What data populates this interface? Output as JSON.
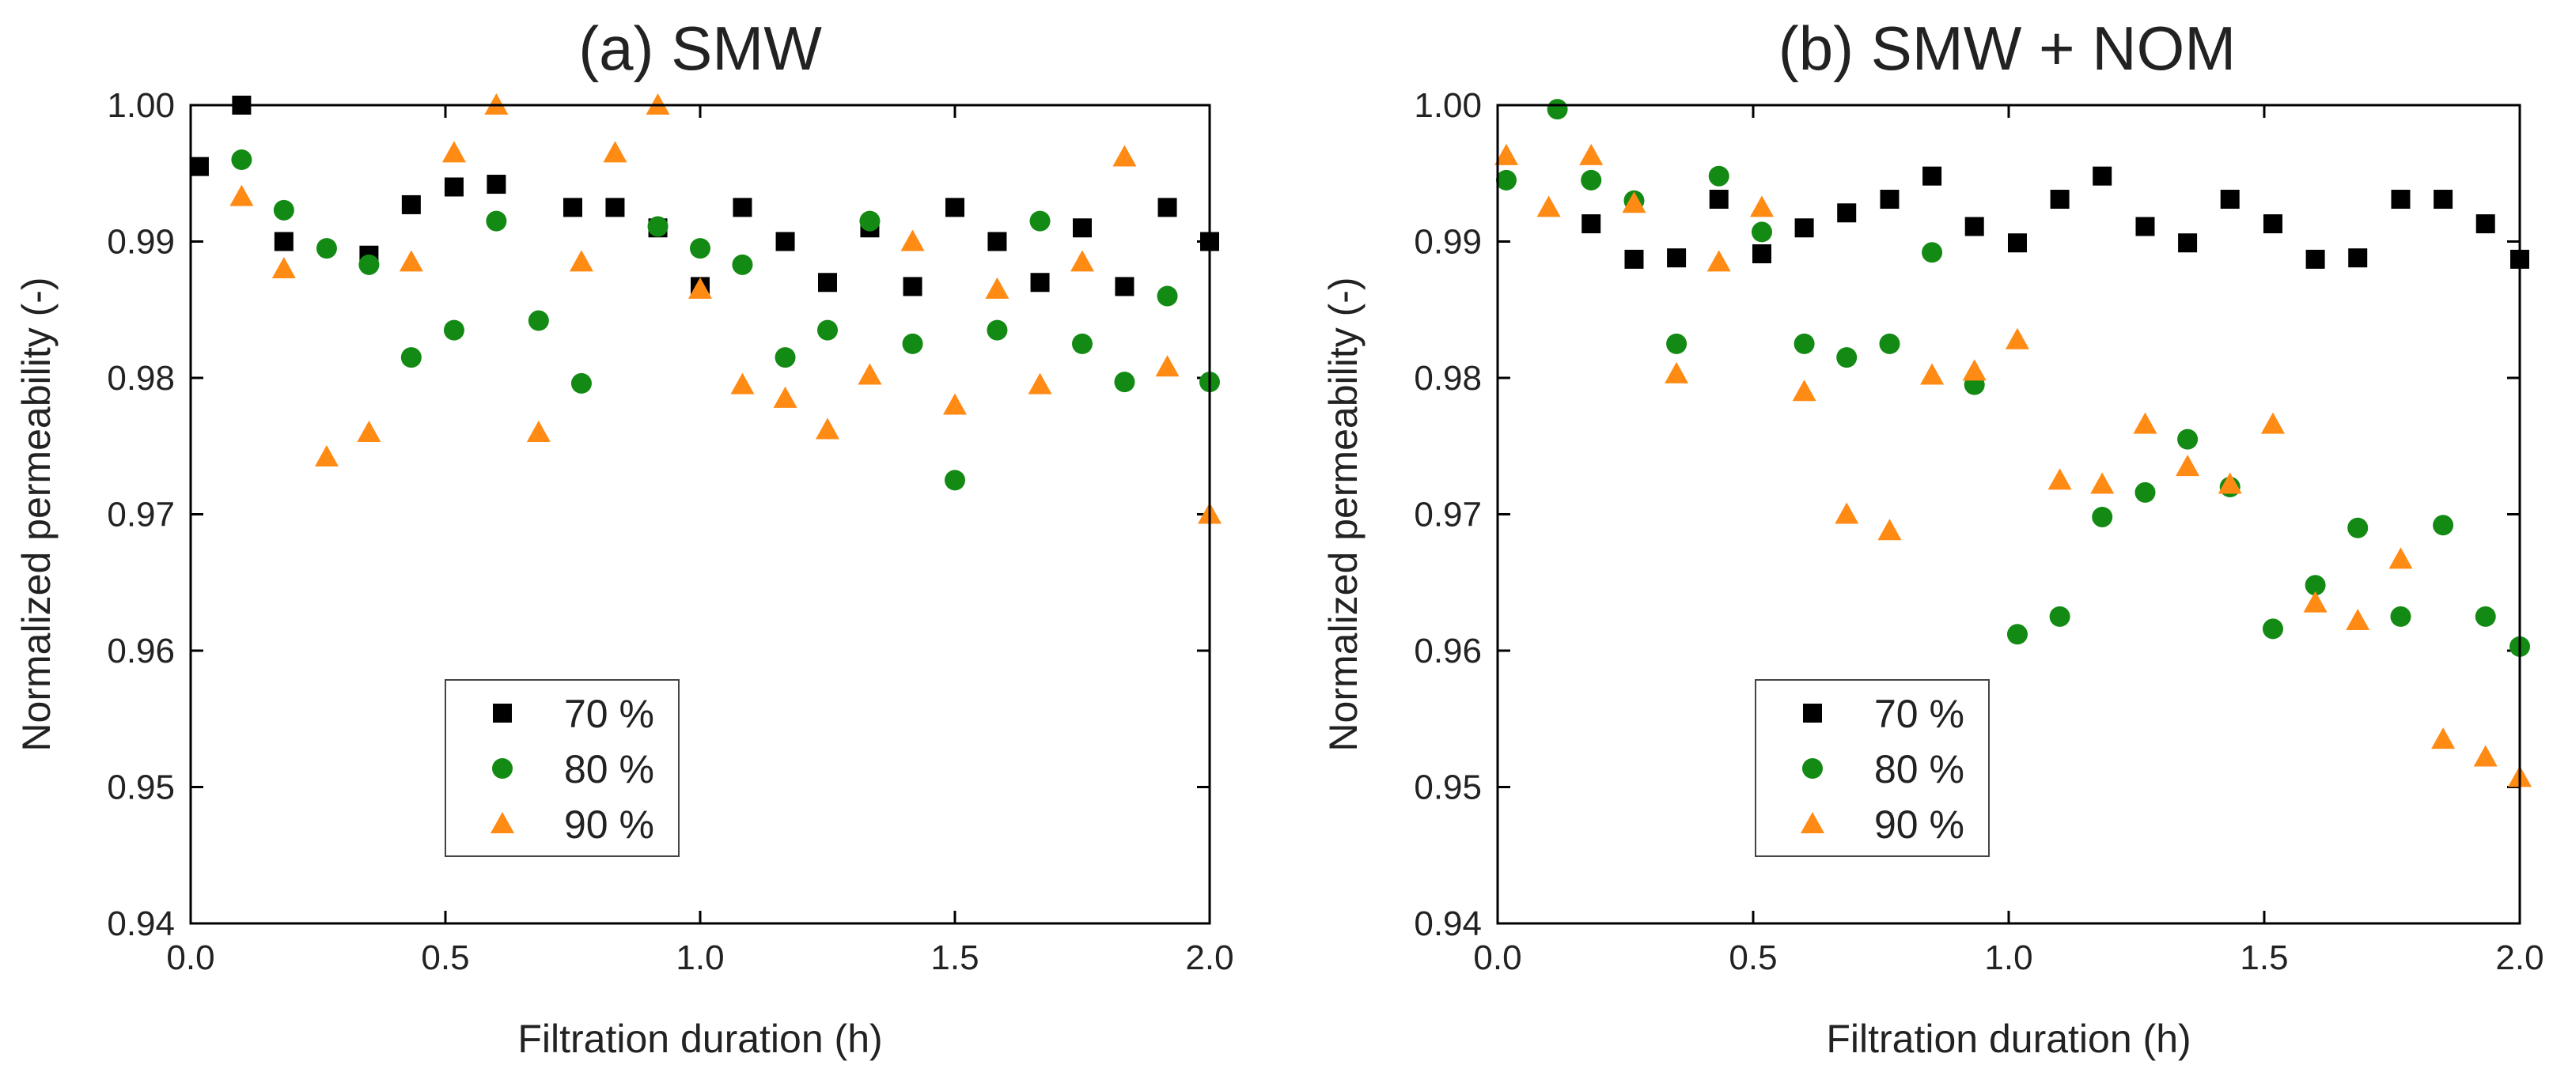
{
  "chart_data": [
    {
      "type": "scatter",
      "title": "(a) SMW",
      "xlabel": "Filtration duration (h)",
      "ylabel": "Normalized permeability (-)",
      "xlim": [
        0,
        2
      ],
      "ylim": [
        0.94,
        1.0
      ],
      "xticks": [
        "0.0",
        "0.5",
        "1.0",
        "1.5",
        "2.0"
      ],
      "yticks": [
        "0.94",
        "0.95",
        "0.96",
        "0.97",
        "0.98",
        "0.99",
        "1.00"
      ],
      "grid": false,
      "legend_position": "bottom-left",
      "series": [
        {
          "name": "70 %",
          "marker": "square",
          "color": "#000000",
          "x": [
            0.017,
            0.1,
            0.183,
            0.35,
            0.433,
            0.517,
            0.6,
            0.75,
            0.833,
            0.917,
            1.0,
            1.083,
            1.167,
            1.25,
            1.333,
            1.417,
            1.5,
            1.583,
            1.667,
            1.75,
            1.833,
            1.917,
            2.0
          ],
          "y": [
            0.9955,
            1.0,
            0.99,
            0.989,
            0.9927,
            0.994,
            0.9942,
            0.9925,
            0.9925,
            0.991,
            0.9867,
            0.9925,
            0.99,
            0.987,
            0.991,
            0.9867,
            0.9925,
            0.99,
            0.987,
            0.991,
            0.9867,
            0.9925,
            0.99
          ]
        },
        {
          "name": "80 %",
          "marker": "circle",
          "color": "#138a13",
          "x": [
            0.1,
            0.183,
            0.267,
            0.35,
            0.433,
            0.517,
            0.6,
            0.683,
            0.767,
            0.917,
            1.0,
            1.083,
            1.167,
            1.25,
            1.333,
            1.417,
            1.5,
            1.583,
            1.667,
            1.75,
            1.833,
            1.917,
            2.0
          ],
          "y": [
            0.996,
            0.9923,
            0.9895,
            0.9883,
            0.9815,
            0.9835,
            0.9915,
            0.9842,
            0.9796,
            0.9911,
            0.9895,
            0.9883,
            0.9815,
            0.9835,
            0.9915,
            0.9825,
            0.9725,
            0.9835,
            0.9915,
            0.9825,
            0.9797,
            0.986,
            0.9797
          ]
        },
        {
          "name": "90 %",
          "marker": "triangle",
          "color": "#ff8a14",
          "x": [
            0.1,
            0.183,
            0.267,
            0.35,
            0.433,
            0.517,
            0.6,
            0.683,
            0.767,
            0.833,
            0.917,
            1.0,
            1.083,
            1.167,
            1.25,
            1.333,
            1.417,
            1.5,
            1.583,
            1.667,
            1.75,
            1.833,
            1.917,
            2.0
          ],
          "y": [
            0.9933,
            0.988,
            0.9742,
            0.976,
            0.9885,
            0.9965,
            1.0,
            0.976,
            0.9885,
            0.9965,
            1.0,
            0.9865,
            0.9795,
            0.9785,
            0.9762,
            0.9802,
            0.99,
            0.978,
            0.9865,
            0.9795,
            0.9885,
            0.9962,
            0.9808,
            0.97
          ]
        }
      ]
    },
    {
      "type": "scatter",
      "title": "(b) SMW + NOM",
      "xlabel": "Filtration duration (h)",
      "ylabel": "Normalized permeability (-)",
      "xlim": [
        0,
        2
      ],
      "ylim": [
        0.94,
        1.0
      ],
      "xticks": [
        "0.0",
        "0.5",
        "1.0",
        "1.5",
        "2.0"
      ],
      "yticks": [
        "0.94",
        "0.95",
        "0.96",
        "0.97",
        "0.98",
        "0.99",
        "1.00"
      ],
      "grid": false,
      "legend_position": "bottom-left",
      "series": [
        {
          "name": "70 %",
          "marker": "square",
          "color": "#000000",
          "x": [
            0.183,
            0.267,
            0.35,
            0.433,
            0.517,
            0.6,
            0.683,
            0.767,
            0.85,
            0.933,
            1.017,
            1.1,
            1.183,
            1.267,
            1.35,
            1.433,
            1.517,
            1.6,
            1.683,
            1.767,
            1.85,
            1.933,
            2.0
          ],
          "y": [
            0.9913,
            0.9887,
            0.9888,
            0.9931,
            0.9891,
            0.991,
            0.9921,
            0.9931,
            0.9948,
            0.9911,
            0.9899,
            0.9931,
            0.9948,
            0.9911,
            0.9899,
            0.9931,
            0.9913,
            0.9887,
            0.9888,
            0.9931,
            0.9931,
            0.9913,
            0.9887
          ]
        },
        {
          "name": "80 %",
          "marker": "circle",
          "color": "#138a13",
          "x": [
            0.017,
            0.117,
            0.183,
            0.267,
            0.35,
            0.433,
            0.517,
            0.6,
            0.683,
            0.767,
            0.85,
            0.933,
            1.017,
            1.1,
            1.183,
            1.267,
            1.35,
            1.433,
            1.517,
            1.6,
            1.683,
            1.767,
            1.85,
            1.933,
            2.0
          ],
          "y": [
            0.9945,
            0.9997,
            0.9945,
            0.993,
            0.9825,
            0.9948,
            0.9907,
            0.9825,
            0.9815,
            0.9825,
            0.9892,
            0.9795,
            0.9612,
            0.9625,
            0.9698,
            0.9716,
            0.9755,
            0.972,
            0.9616,
            0.9648,
            0.969,
            0.9625,
            0.9692,
            0.9625,
            0.9603
          ]
        },
        {
          "name": "90 %",
          "marker": "triangle",
          "color": "#ff8a14",
          "x": [
            0.017,
            0.1,
            0.183,
            0.267,
            0.35,
            0.433,
            0.517,
            0.6,
            0.683,
            0.767,
            0.85,
            0.933,
            1.017,
            1.1,
            1.183,
            1.267,
            1.35,
            1.433,
            1.517,
            1.6,
            1.683,
            1.767,
            1.85,
            1.933,
            2.0
          ],
          "y": [
            0.9963,
            0.9925,
            0.9963,
            0.9928,
            0.9803,
            0.9885,
            0.9925,
            0.979,
            0.97,
            0.9688,
            0.9802,
            0.9805,
            0.9828,
            0.9725,
            0.9722,
            0.9766,
            0.9735,
            0.9722,
            0.9766,
            0.9635,
            0.9622,
            0.9667,
            0.9535,
            0.9522,
            0.9507
          ]
        }
      ]
    }
  ]
}
